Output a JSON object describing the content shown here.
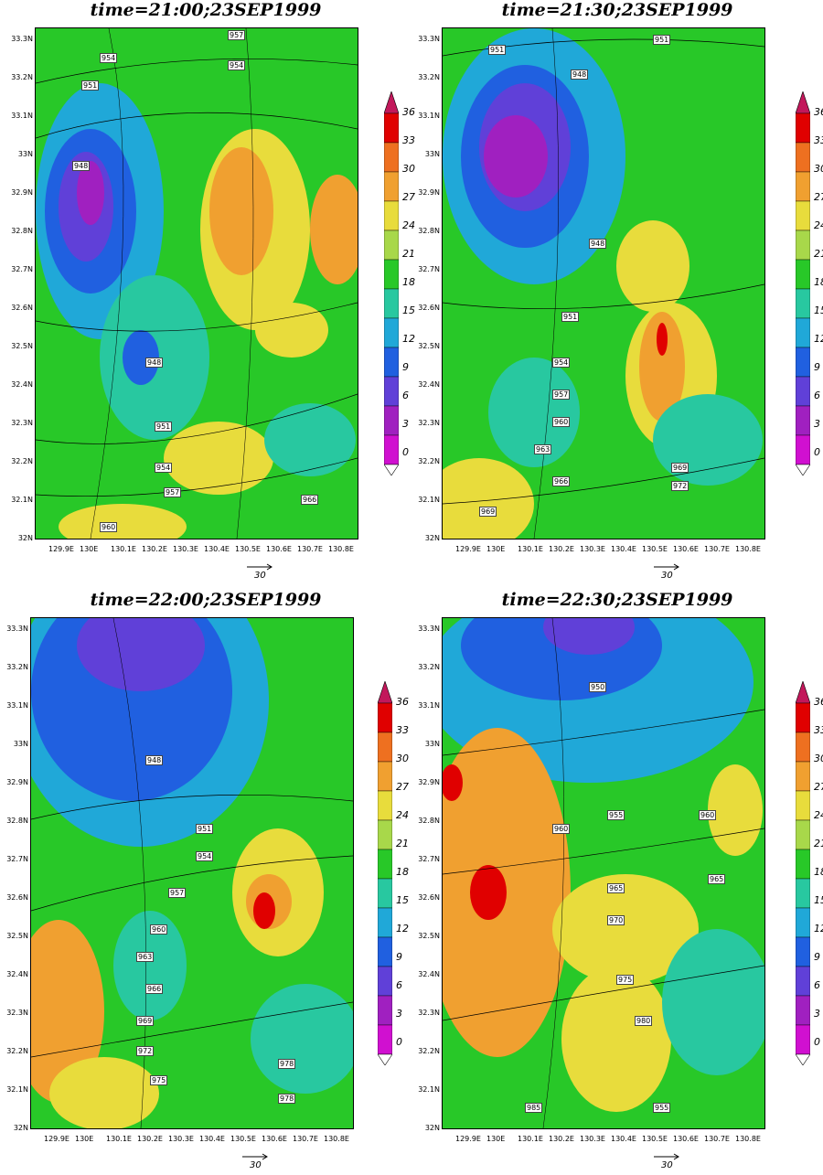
{
  "panels": [
    {
      "title": "time=21:00;23SEP1999",
      "labels": [
        "957",
        "954",
        "951",
        "954",
        "948",
        "948",
        "951",
        "954",
        "957",
        "966",
        "960"
      ]
    },
    {
      "title": "time=21:30;23SEP1999",
      "labels": [
        "951",
        "951",
        "948",
        "948",
        "951",
        "954",
        "957",
        "960",
        "963",
        "966",
        "969",
        "972",
        "969"
      ]
    },
    {
      "title": "time=22:00;23SEP1999",
      "labels": [
        "948",
        "951",
        "954",
        "957",
        "960",
        "963",
        "966",
        "969",
        "972",
        "975",
        "978",
        "978"
      ]
    },
    {
      "title": "time=22:30;23SEP1999",
      "labels": [
        "950",
        "955",
        "960",
        "960",
        "965",
        "965",
        "970",
        "975",
        "980",
        "985",
        "955"
      ]
    }
  ],
  "lat_ticks": [
    "33.3N",
    "33.2N",
    "33.1N",
    "33N",
    "32.9N",
    "32.8N",
    "32.7N",
    "32.6N",
    "32.5N",
    "32.4N",
    "32.3N",
    "32.2N",
    "32.1N",
    "32N"
  ],
  "lon_ticks": [
    "129.9E",
    "130E",
    "130.1E",
    "130.2E",
    "130.3E",
    "130.4E",
    "130.5E",
    "130.6E",
    "130.7E",
    "130.8E"
  ],
  "colorbar_ticks": [
    "36",
    "33",
    "30",
    "27",
    "24",
    "21",
    "18",
    "15",
    "12",
    "9",
    "6",
    "3",
    "0"
  ],
  "colorbar_colors": [
    "#c2185b",
    "#e00000",
    "#ee7020",
    "#f0a030",
    "#e8dc3c",
    "#a8d84a",
    "#28c828",
    "#28c8a0",
    "#20a8d8",
    "#2060e0",
    "#6040d8",
    "#a020c0",
    "#d010d0"
  ],
  "reference_vector": "30"
}
